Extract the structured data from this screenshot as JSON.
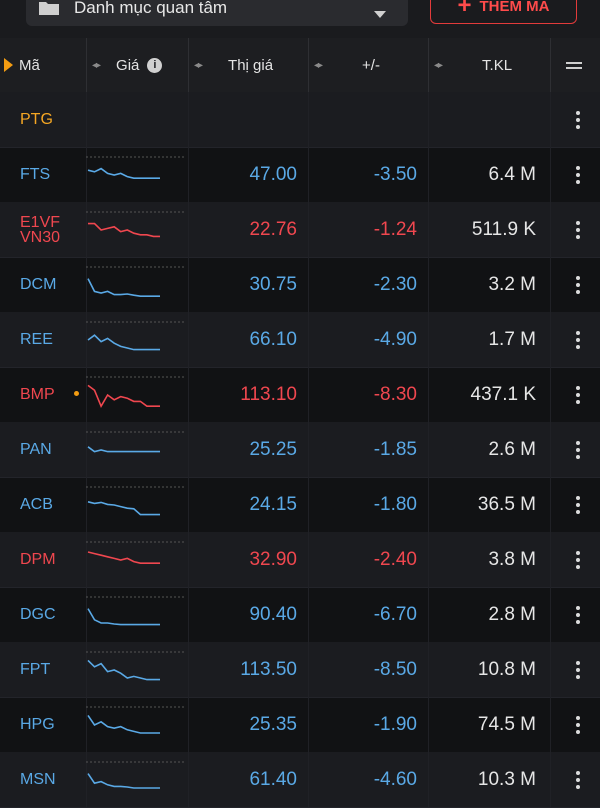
{
  "topbar": {
    "watchlist_label": "Danh mục quan tâm",
    "add_label": "THÊM MÃ"
  },
  "header": {
    "symbol": "Mã",
    "price": "Giá",
    "market_price": "Thị giá",
    "change": "+/-",
    "volume": "T.KL"
  },
  "colors": {
    "up_blue": "#5aa9e6",
    "down_red": "#f0474f",
    "ref_yellow": "#f5a623"
  },
  "rows": [
    {
      "symbol": "PTG",
      "price": "",
      "change": "",
      "volume": "",
      "color": "yellow",
      "spark": []
    },
    {
      "symbol": "FTS",
      "price": "47.00",
      "change": "-3.50",
      "volume": "6.4 M",
      "color": "blue",
      "spark": [
        0.35,
        0.4,
        0.3,
        0.45,
        0.5,
        0.45,
        0.55,
        0.6,
        0.6,
        0.6,
        0.6,
        0.6
      ]
    },
    {
      "symbol": "E1VF\nVN30",
      "price": "22.76",
      "change": "-1.24",
      "volume": "511.9 K",
      "color": "red",
      "spark": [
        0.3,
        0.3,
        0.5,
        0.45,
        0.4,
        0.55,
        0.5,
        0.6,
        0.65,
        0.65,
        0.7,
        0.7
      ]
    },
    {
      "symbol": "DCM",
      "price": "30.75",
      "change": "-2.30",
      "volume": "3.2 M",
      "color": "blue",
      "spark": [
        0.3,
        0.7,
        0.75,
        0.7,
        0.8,
        0.8,
        0.78,
        0.82,
        0.85,
        0.85,
        0.85,
        0.85
      ]
    },
    {
      "symbol": "REE",
      "price": "66.10",
      "change": "-4.90",
      "volume": "1.7 M",
      "color": "blue",
      "spark": [
        0.5,
        0.35,
        0.55,
        0.45,
        0.6,
        0.7,
        0.75,
        0.8,
        0.8,
        0.8,
        0.8,
        0.8
      ]
    },
    {
      "symbol": "BMP",
      "price": "113.10",
      "change": "-8.30",
      "volume": "437.1 K",
      "color": "red",
      "marker": true,
      "spark": [
        0.2,
        0.35,
        0.85,
        0.5,
        0.65,
        0.55,
        0.6,
        0.7,
        0.7,
        0.85,
        0.85,
        0.85
      ]
    },
    {
      "symbol": "PAN",
      "price": "25.25",
      "change": "-1.85",
      "volume": "2.6 M",
      "color": "blue",
      "spark": [
        0.4,
        0.55,
        0.5,
        0.55,
        0.55,
        0.55,
        0.55,
        0.55,
        0.55,
        0.55,
        0.55,
        0.55
      ]
    },
    {
      "symbol": "ACB",
      "price": "24.15",
      "change": "-1.80",
      "volume": "36.5 M",
      "color": "blue",
      "spark": [
        0.4,
        0.45,
        0.42,
        0.48,
        0.5,
        0.55,
        0.6,
        0.62,
        0.8,
        0.8,
        0.8,
        0.8
      ]
    },
    {
      "symbol": "DPM",
      "price": "32.90",
      "change": "-2.40",
      "volume": "3.8 M",
      "color": "red",
      "spark": [
        0.25,
        0.3,
        0.35,
        0.4,
        0.45,
        0.5,
        0.45,
        0.55,
        0.6,
        0.6,
        0.6,
        0.6
      ]
    },
    {
      "symbol": "DGC",
      "price": "90.40",
      "change": "-6.70",
      "volume": "2.8 M",
      "color": "blue",
      "spark": [
        0.3,
        0.65,
        0.75,
        0.75,
        0.78,
        0.8,
        0.8,
        0.8,
        0.8,
        0.8,
        0.8,
        0.8
      ]
    },
    {
      "symbol": "FPT",
      "price": "113.50",
      "change": "-8.50",
      "volume": "10.8 M",
      "color": "blue",
      "spark": [
        0.2,
        0.4,
        0.3,
        0.55,
        0.5,
        0.6,
        0.75,
        0.7,
        0.75,
        0.8,
        0.8,
        0.8
      ]
    },
    {
      "symbol": "HPG",
      "price": "25.35",
      "change": "-1.90",
      "volume": "74.5 M",
      "color": "blue",
      "spark": [
        0.2,
        0.5,
        0.4,
        0.55,
        0.6,
        0.55,
        0.65,
        0.7,
        0.75,
        0.75,
        0.75,
        0.75
      ]
    },
    {
      "symbol": "MSN",
      "price": "61.40",
      "change": "-4.60",
      "volume": "10.3 M",
      "color": "blue",
      "spark": [
        0.3,
        0.6,
        0.55,
        0.65,
        0.7,
        0.7,
        0.72,
        0.75,
        0.75,
        0.75,
        0.75,
        0.75
      ]
    }
  ]
}
